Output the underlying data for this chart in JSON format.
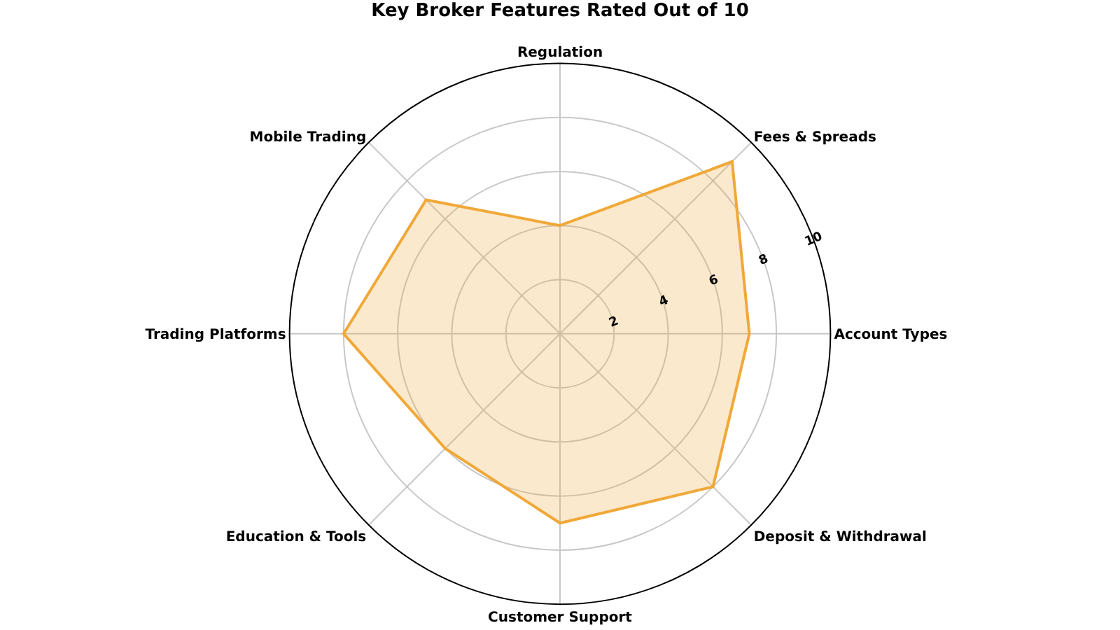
{
  "chart_data": {
    "type": "radar",
    "title": "Key Broker Features Rated Out of 10",
    "categories": [
      "Regulation",
      "Fees & Spreads",
      "Account Types",
      "Deposit & Withdrawal",
      "Customer Support",
      "Education & Tools",
      "Trading Platforms",
      "Mobile Trading"
    ],
    "series": [
      {
        "color": "#f0a838",
        "values": [
          4,
          9,
          7,
          8,
          7,
          6,
          8,
          7
        ]
      }
    ],
    "ylim": [
      0,
      10
    ],
    "yticks": [
      2,
      4,
      6,
      8,
      10
    ],
    "grid": true,
    "marker": "none",
    "line_style": "solid"
  }
}
